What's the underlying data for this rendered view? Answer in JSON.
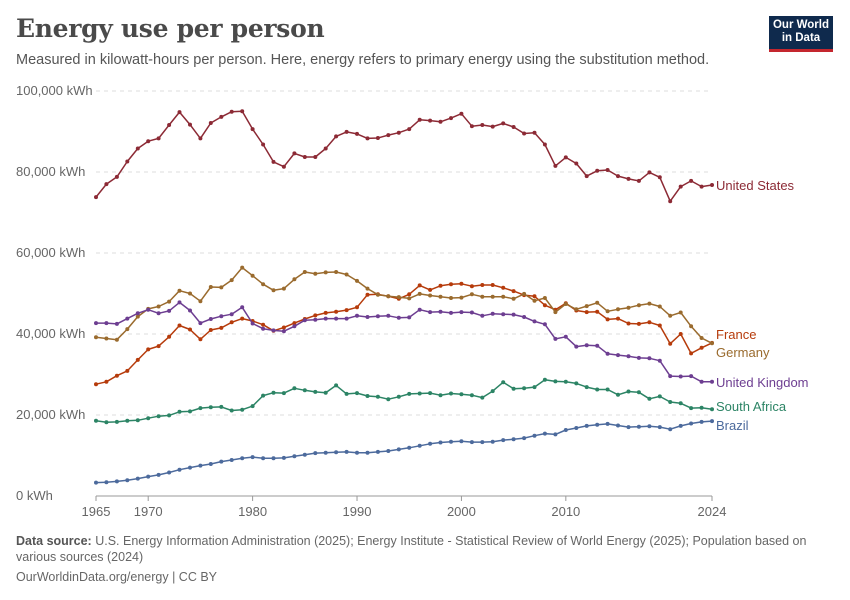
{
  "header": {
    "title": "Energy use per person",
    "subtitle": "Measured in kilowatt-hours per person. Here, energy refers to primary energy using the substitution method.",
    "logo_line1": "Our World",
    "logo_line2": "in Data"
  },
  "footer": {
    "source_label": "Data source:",
    "source_text": "U.S. Energy Information Administration (2025); Energy Institute - Statistical Review of World Energy (2025); Population based on various sources (2024)",
    "credit": "OurWorldinData.org/energy | CC BY"
  },
  "chart_data": {
    "type": "line",
    "ylim": [
      0,
      100000
    ],
    "xlim": [
      1965,
      2024
    ],
    "y_ticks": [
      0,
      20000,
      40000,
      60000,
      80000,
      100000
    ],
    "y_tick_labels": [
      "0 kWh",
      "20,000 kWh",
      "40,000 kWh",
      "60,000 kWh",
      "80,000 kWh",
      "100,000 kWh"
    ],
    "x_ticks": [
      1965,
      1970,
      1980,
      1990,
      2000,
      2010,
      2024
    ],
    "x_tick_labels": [
      "1965",
      "1970",
      "1980",
      "1990",
      "2000",
      "2010",
      "2024"
    ],
    "grid": true,
    "legend": "right-end labels",
    "x": [
      1965,
      1966,
      1967,
      1968,
      1969,
      1970,
      1971,
      1972,
      1973,
      1974,
      1975,
      1976,
      1977,
      1978,
      1979,
      1980,
      1981,
      1982,
      1983,
      1984,
      1985,
      1986,
      1987,
      1988,
      1989,
      1990,
      1991,
      1992,
      1993,
      1994,
      1995,
      1996,
      1997,
      1998,
      1999,
      2000,
      2001,
      2002,
      2003,
      2004,
      2005,
      2006,
      2007,
      2008,
      2009,
      2010,
      2011,
      2012,
      2013,
      2014,
      2015,
      2016,
      2017,
      2018,
      2019,
      2020,
      2021,
      2022,
      2023,
      2024
    ],
    "series": [
      {
        "name": "United States",
        "color": "#8c2a35",
        "values": [
          73800,
          77000,
          78800,
          82600,
          85800,
          87600,
          88300,
          91600,
          94800,
          91700,
          88300,
          92100,
          93600,
          94900,
          95000,
          90600,
          86800,
          82500,
          81300,
          84600,
          83700,
          83700,
          85800,
          88800,
          89900,
          89400,
          88300,
          88400,
          89100,
          89700,
          90600,
          92900,
          92700,
          92400,
          93300,
          94400,
          91300,
          91600,
          91200,
          92000,
          91100,
          89500,
          89700,
          86800,
          81500,
          83600,
          82100,
          79000,
          80300,
          80500,
          79000,
          78300,
          77800,
          79900,
          78700,
          72800,
          76400,
          77800,
          76400,
          76800
        ]
      },
      {
        "name": "France",
        "color": "#b63b0b",
        "values": [
          27600,
          28200,
          29700,
          30900,
          33600,
          36200,
          37000,
          39300,
          42100,
          41100,
          38700,
          41000,
          41500,
          42900,
          43800,
          43200,
          42300,
          40800,
          41600,
          42700,
          43700,
          44600,
          45200,
          45500,
          45900,
          46600,
          49700,
          49800,
          49300,
          48700,
          49800,
          52000,
          50900,
          51900,
          52300,
          52400,
          51800,
          52100,
          52100,
          51400,
          50600,
          49600,
          49300,
          47100,
          46000,
          47600,
          45800,
          45400,
          45500,
          43600,
          43800,
          42600,
          42500,
          42900,
          42100,
          37600,
          40000,
          35200,
          36600,
          37800
        ]
      },
      {
        "name": "Germany",
        "color": "#9a6b2e",
        "values": [
          39200,
          38900,
          38600,
          41200,
          44300,
          46200,
          46800,
          48000,
          50700,
          50000,
          48100,
          51600,
          51500,
          53300,
          56400,
          54400,
          52300,
          50800,
          51200,
          53500,
          55300,
          54900,
          55200,
          55300,
          54700,
          53100,
          51200,
          49700,
          49300,
          49100,
          48800,
          49900,
          49500,
          49200,
          48900,
          49000,
          49800,
          49200,
          49200,
          49200,
          48700,
          49900,
          48200,
          48900,
          45400,
          47400,
          46100,
          46900,
          47700,
          45600,
          46100,
          46500,
          47100,
          47500,
          46800,
          44500,
          45300,
          41900,
          39000,
          37700
        ]
      },
      {
        "name": "United Kingdom",
        "color": "#6d3e91",
        "values": [
          42700,
          42700,
          42500,
          43800,
          45100,
          46000,
          45100,
          45700,
          47800,
          45800,
          42700,
          43700,
          44400,
          44900,
          46600,
          42600,
          41300,
          40900,
          40700,
          41900,
          43400,
          43500,
          43800,
          43800,
          43800,
          44500,
          44200,
          44400,
          44500,
          44000,
          44100,
          46000,
          45400,
          45500,
          45200,
          45400,
          45300,
          44500,
          45000,
          44900,
          44800,
          44200,
          43100,
          42400,
          38800,
          39300,
          36900,
          37200,
          37100,
          35100,
          34800,
          34500,
          34100,
          34000,
          33400,
          29600,
          29500,
          29600,
          28200,
          28200
        ]
      },
      {
        "name": "South Africa",
        "color": "#2c8465",
        "values": [
          18600,
          18200,
          18300,
          18600,
          18700,
          19200,
          19700,
          19900,
          20800,
          20900,
          21700,
          21900,
          22000,
          21100,
          21300,
          22200,
          24800,
          25500,
          25400,
          26600,
          26100,
          25700,
          25500,
          27300,
          25200,
          25400,
          24700,
          24500,
          23900,
          24500,
          25200,
          25300,
          25400,
          24900,
          25300,
          25100,
          24900,
          24300,
          25900,
          28100,
          26500,
          26600,
          26900,
          28700,
          28300,
          28200,
          27800,
          26900,
          26300,
          26300,
          25000,
          25800,
          25600,
          24000,
          24600,
          23200,
          22900,
          21700,
          21800,
          21400
        ]
      },
      {
        "name": "Brazil",
        "color": "#4c6a9c",
        "values": [
          3300,
          3400,
          3600,
          3900,
          4300,
          4800,
          5200,
          5800,
          6500,
          7000,
          7500,
          7900,
          8500,
          8900,
          9300,
          9600,
          9300,
          9300,
          9400,
          9800,
          10200,
          10600,
          10700,
          10800,
          10900,
          10700,
          10700,
          10900,
          11100,
          11500,
          11900,
          12400,
          12900,
          13200,
          13400,
          13500,
          13300,
          13300,
          13400,
          13800,
          14000,
          14300,
          14900,
          15400,
          15200,
          16300,
          16800,
          17300,
          17600,
          17800,
          17400,
          17000,
          17100,
          17200,
          17000,
          16500,
          17300,
          17900,
          18300,
          18500
        ]
      }
    ]
  }
}
